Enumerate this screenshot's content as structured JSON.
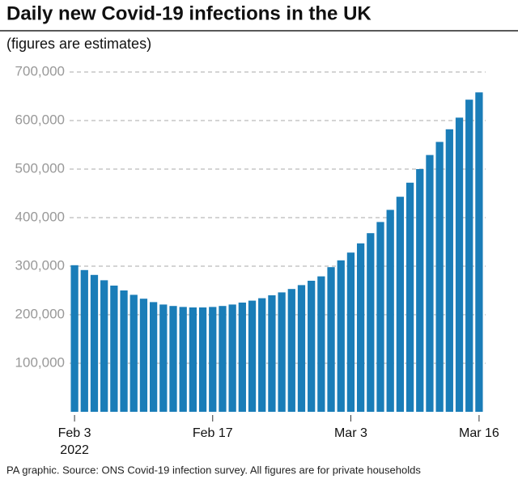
{
  "chart_data": {
    "type": "bar",
    "title": "Daily new Covid-19 infections in the UK",
    "subtitle": "(figures are estimates)",
    "source": "PA graphic. Source: ONS Covid-19 infection survey. All figures are for private households",
    "year_label": "2022",
    "categories": [
      "Feb 3",
      null,
      null,
      null,
      null,
      null,
      null,
      null,
      null,
      null,
      null,
      null,
      null,
      null,
      "Feb 17",
      null,
      null,
      null,
      null,
      null,
      null,
      null,
      null,
      null,
      null,
      null,
      null,
      null,
      "Mar 3",
      null,
      null,
      null,
      null,
      null,
      null,
      null,
      null,
      null,
      null,
      null,
      null,
      "Mar 16"
    ],
    "values": [
      302000,
      292000,
      282000,
      271000,
      260000,
      250000,
      241000,
      233000,
      226000,
      221000,
      218000,
      216000,
      215000,
      215000,
      216000,
      218000,
      221000,
      225000,
      229000,
      234000,
      240000,
      246000,
      253000,
      261000,
      270000,
      279000,
      298000,
      312000,
      328000,
      347000,
      368000,
      391000,
      416000,
      443000,
      472000,
      500000,
      529000,
      556000,
      582000,
      606000,
      643000,
      658000
    ],
    "color": "#1a7db8",
    "ylim": [
      0,
      700000
    ],
    "yticks": [
      {
        "value": 100000,
        "label": "100,000"
      },
      {
        "value": 200000,
        "label": "200,000"
      },
      {
        "value": 300000,
        "label": "300,000"
      },
      {
        "value": 400000,
        "label": "400,000"
      },
      {
        "value": 500000,
        "label": "500,000"
      },
      {
        "value": 600000,
        "label": "600,000"
      },
      {
        "value": 700000,
        "label": "700,000"
      }
    ],
    "grid": true
  }
}
